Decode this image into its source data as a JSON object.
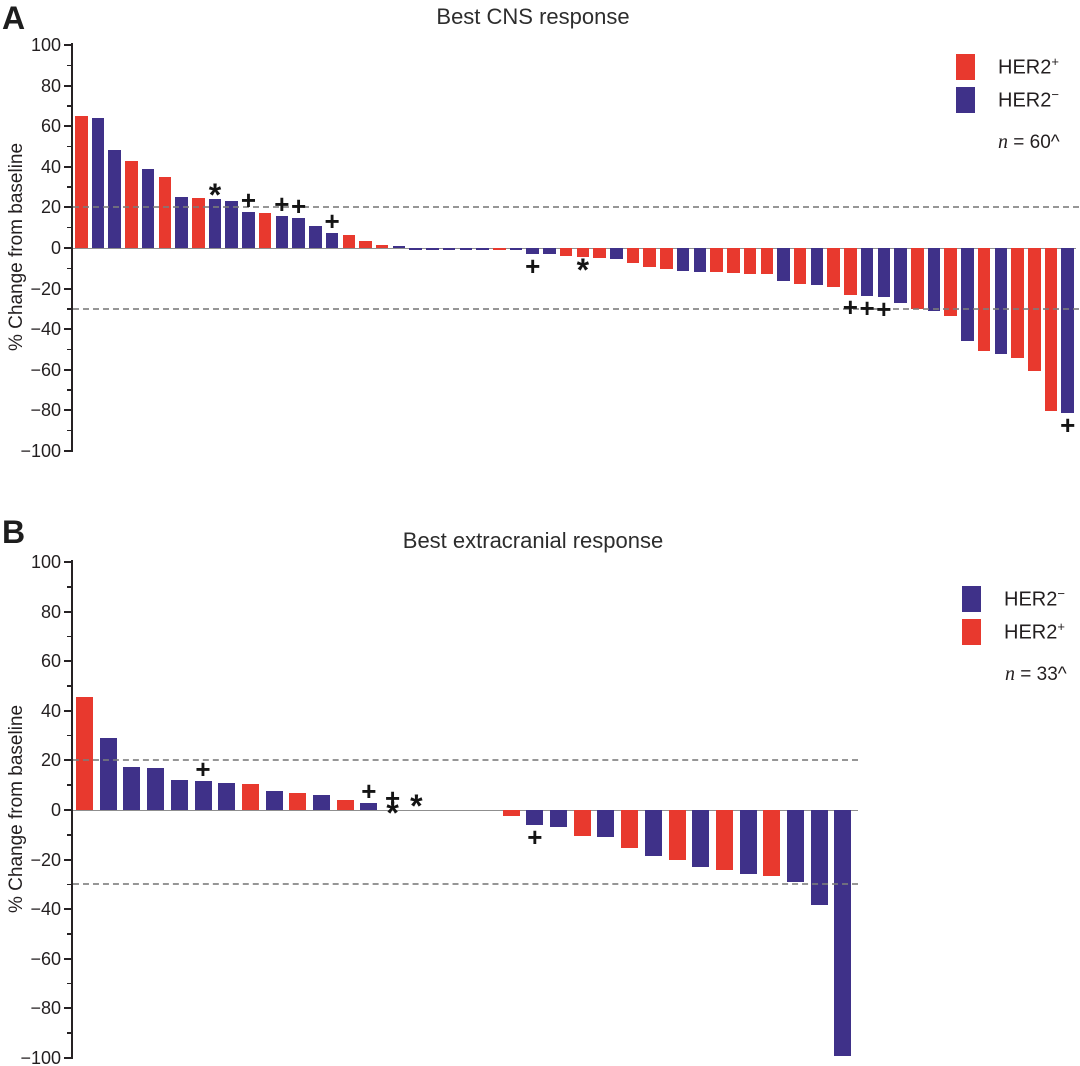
{
  "colors": {
    "R": "#e8392e",
    "B": "#3f3189",
    "symbol": "#141414",
    "axis": "#262224",
    "dashed_line": "#7c7c7c",
    "zero_line": "#8f8f8f",
    "text": "#231f20"
  },
  "chart_data": {
    "type": "bar",
    "subtype": "waterfall",
    "panels": [
      {
        "id": "A",
        "label": "A",
        "title": "Best CNS response",
        "ylabel": "% Change from baseline",
        "ylim": [
          -100,
          100
        ],
        "yticks": [
          {
            "v": 100,
            "label": "100"
          },
          {
            "v": 80,
            "label": "80"
          },
          {
            "v": 60,
            "label": "60"
          },
          {
            "v": 40,
            "label": "40"
          },
          {
            "v": 20,
            "label": "20"
          },
          {
            "v": 0,
            "label": "0"
          },
          {
            "v": -20,
            "label": "−20"
          },
          {
            "v": -40,
            "label": "−40"
          },
          {
            "v": -60,
            "label": "−60"
          },
          {
            "v": -80,
            "label": "−80"
          },
          {
            "v": -100,
            "label": "−100"
          }
        ],
        "minor_tick_step": 10,
        "ref_lines": [
          20,
          -30
        ],
        "legend": [
          {
            "base": "HER2",
            "sup": "+",
            "color": "#e8392e"
          },
          {
            "base": "HER2",
            "sup": "−",
            "color": "#3f3189"
          }
        ],
        "n_prefix": "n",
        "n_rest": " = 60^",
        "bars": [
          {
            "v": 65,
            "c": "R"
          },
          {
            "v": 64,
            "c": "B"
          },
          {
            "v": 48.5,
            "c": "B"
          },
          {
            "v": 43,
            "c": "R"
          },
          {
            "v": 39,
            "c": "B"
          },
          {
            "v": 35,
            "c": "R"
          },
          {
            "v": 25,
            "c": "B"
          },
          {
            "v": 24.5,
            "c": "R"
          },
          {
            "v": 24,
            "c": "B",
            "s": "a*"
          },
          {
            "v": 23,
            "c": "B"
          },
          {
            "v": 17.5,
            "c": "B",
            "s": "a+"
          },
          {
            "v": 17,
            "c": "R"
          },
          {
            "v": 16,
            "c": "B",
            "s": "a+"
          },
          {
            "v": 15,
            "c": "B",
            "s": "a+"
          },
          {
            "v": 11,
            "c": "B"
          },
          {
            "v": 7.5,
            "c": "B",
            "s": "a+"
          },
          {
            "v": 6.5,
            "c": "R"
          },
          {
            "v": 3.5,
            "c": "R"
          },
          {
            "v": 1.5,
            "c": "R"
          },
          {
            "v": 0.8,
            "c": "B"
          },
          {
            "v": -0.3,
            "c": "B"
          },
          {
            "v": -0.3,
            "c": "B"
          },
          {
            "v": -0.4,
            "c": "B"
          },
          {
            "v": -0.4,
            "c": "B"
          },
          {
            "v": -0.5,
            "c": "B"
          },
          {
            "v": -0.6,
            "c": "R"
          },
          {
            "v": -1,
            "c": "B"
          },
          {
            "v": -3,
            "c": "B",
            "s": "b+"
          },
          {
            "v": -3,
            "c": "B"
          },
          {
            "v": -4,
            "c": "R"
          },
          {
            "v": -4.5,
            "c": "R",
            "s": "b*"
          },
          {
            "v": -5,
            "c": "R"
          },
          {
            "v": -5.5,
            "c": "B"
          },
          {
            "v": -7.5,
            "c": "R"
          },
          {
            "v": -9.5,
            "c": "R"
          },
          {
            "v": -10.5,
            "c": "R"
          },
          {
            "v": -11.5,
            "c": "B"
          },
          {
            "v": -12,
            "c": "B"
          },
          {
            "v": -12,
            "c": "R"
          },
          {
            "v": -12.5,
            "c": "R"
          },
          {
            "v": -13,
            "c": "R"
          },
          {
            "v": -13,
            "c": "R"
          },
          {
            "v": -16.5,
            "c": "B"
          },
          {
            "v": -17.5,
            "c": "R"
          },
          {
            "v": -18,
            "c": "B"
          },
          {
            "v": -19,
            "c": "R"
          },
          {
            "v": -23,
            "c": "R",
            "s": "b+"
          },
          {
            "v": -23.5,
            "c": "B",
            "s": "b+"
          },
          {
            "v": -24,
            "c": "B",
            "s": "b+"
          },
          {
            "v": -27,
            "c": "B"
          },
          {
            "v": -30,
            "c": "R"
          },
          {
            "v": -31,
            "c": "B"
          },
          {
            "v": -33.5,
            "c": "R"
          },
          {
            "v": -46,
            "c": "B"
          },
          {
            "v": -50.5,
            "c": "R"
          },
          {
            "v": -52,
            "c": "B"
          },
          {
            "v": -54,
            "c": "R"
          },
          {
            "v": -60.5,
            "c": "R"
          },
          {
            "v": -80.5,
            "c": "R"
          },
          {
            "v": -81.5,
            "c": "B",
            "s": "b+"
          }
        ]
      },
      {
        "id": "B",
        "label": "B",
        "title": "Best extracranial response",
        "ylabel": "% Change from baseline",
        "ylim": [
          -100,
          100
        ],
        "yticks": [
          {
            "v": 100,
            "label": "100"
          },
          {
            "v": 80,
            "label": "80"
          },
          {
            "v": 60,
            "label": "60"
          },
          {
            "v": 40,
            "label": "40"
          },
          {
            "v": 20,
            "label": "20"
          },
          {
            "v": 0,
            "label": "0"
          },
          {
            "v": -20,
            "label": "−20"
          },
          {
            "v": -40,
            "label": "−40"
          },
          {
            "v": -60,
            "label": "−60"
          },
          {
            "v": -80,
            "label": "−80"
          },
          {
            "v": -100,
            "label": "−100"
          }
        ],
        "minor_tick_step": 10,
        "ref_lines": [
          20,
          -30
        ],
        "legend": [
          {
            "base": "HER2",
            "sup": "−",
            "color": "#3f3189"
          },
          {
            "base": "HER2",
            "sup": "+",
            "color": "#e8392e"
          }
        ],
        "n_prefix": "n",
        "n_rest": " = 33^",
        "bars": [
          {
            "v": 45.5,
            "c": "R"
          },
          {
            "v": 29,
            "c": "B"
          },
          {
            "v": 17.5,
            "c": "B"
          },
          {
            "v": 17,
            "c": "B"
          },
          {
            "v": 12,
            "c": "B"
          },
          {
            "v": 11.5,
            "c": "B",
            "s": "a+"
          },
          {
            "v": 11,
            "c": "B"
          },
          {
            "v": 10.5,
            "c": "R"
          },
          {
            "v": 7.5,
            "c": "B"
          },
          {
            "v": 7,
            "c": "R"
          },
          {
            "v": 6,
            "c": "B"
          },
          {
            "v": 4,
            "c": "R"
          },
          {
            "v": 3,
            "c": "B",
            "s": "a+"
          },
          {
            "v": 0,
            "c": "B",
            "s": "a+*"
          },
          {
            "v": 0,
            "c": "B",
            "s": "a*"
          },
          {
            "v": 0,
            "c": "B"
          },
          {
            "v": 0,
            "c": "B"
          },
          {
            "v": 0,
            "c": "B"
          },
          {
            "v": -2.5,
            "c": "R"
          },
          {
            "v": -6,
            "c": "B",
            "s": "b+"
          },
          {
            "v": -7,
            "c": "B"
          },
          {
            "v": -10.5,
            "c": "R"
          },
          {
            "v": -11,
            "c": "B"
          },
          {
            "v": -15.5,
            "c": "R"
          },
          {
            "v": -18.5,
            "c": "B"
          },
          {
            "v": -20,
            "c": "R"
          },
          {
            "v": -23,
            "c": "B"
          },
          {
            "v": -24,
            "c": "R"
          },
          {
            "v": -26,
            "c": "B"
          },
          {
            "v": -26.5,
            "c": "R"
          },
          {
            "v": -29,
            "c": "B"
          },
          {
            "v": -38.5,
            "c": "B"
          },
          {
            "v": -99,
            "c": "B"
          }
        ]
      }
    ]
  }
}
